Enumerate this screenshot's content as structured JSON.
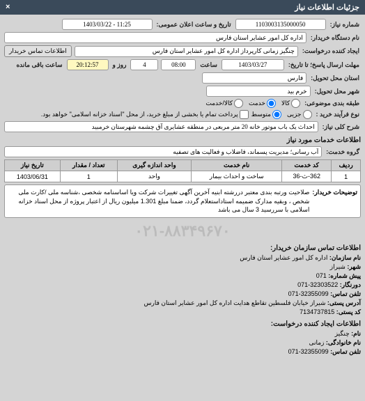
{
  "header": {
    "title": "جزئیات اطلاعات نیاز",
    "close": "×"
  },
  "fields": {
    "req_no_label": "شماره نیاز:",
    "req_no": "1103003135000050",
    "announce_label": "تاریخ و ساعت اعلان عمومی:",
    "announce": "1403/03/22 - 11:25",
    "buyer_label": "نام دستگاه خریدار:",
    "buyer": "اداره کل امور عشایر استان فارس",
    "creator_label": "ایجاد کننده درخواست:",
    "creator": "چنگیز زمانی کارپرداز اداره کل امور عشایر استان فارس",
    "contact_btn": "اطلاعات تماس خریدار",
    "deadline_label": "مهلت ارسال پاسخ؛ تا تاریخ:",
    "deadline_date": "1403/03/27",
    "time1_label": "ساعت",
    "time1": "08:00",
    "days_label": "روز و",
    "days": "4",
    "time2_label": "ساعت باقی مانده",
    "time2": "20:12:57",
    "province_label": "استان محل تحویل:",
    "province": "فارس",
    "city_label": "شهر محل تحویل:",
    "city": "خرم بید",
    "subject_label": "طبقه بندی موضوعی:",
    "subj_kala": "کالا",
    "subj_khedmat": "خدمت",
    "subj_both": "کالا/خدمت",
    "buy_type_label": "نوع فرآیند خرید :",
    "buy_j": "جزیی",
    "buy_m": "متوسط",
    "buy_note": "پرداخت تمام یا بخشی از مبلغ خرید، از محل \"اسناد خزانه اسلامی\" خواهد بود.",
    "title_label": "شرح کلی نیاز:",
    "title": "احداث یک باب موتور خانه 20 متر مربعی در منطقه عشایری آق چشمه شهرستان خرمبید",
    "need_info": "اطلاعات خدمات مورد نیاز",
    "group_label": "گروه خدمت:",
    "group": "آب رسانی؛ مدیریت پسماند، فاضلاب و فعالیت های تصفیه"
  },
  "table": {
    "cols": [
      "ردیف",
      "کد خدمت",
      "نام خدمت",
      "واحد اندازه گیری",
      "تعداد / مقدار",
      "تاریخ نیاز"
    ],
    "rows": [
      [
        "1",
        "362-ث-36",
        "ساخت و احداث بیمار",
        "واحد",
        "1",
        "1403/06/31"
      ]
    ]
  },
  "desc": {
    "label": "توضیحات خریدار:",
    "text": "صلاحیت ورتبه بندی معتبر دررشته ابنیه آخرین آگهی تغییرات شرکت ویا اساسنامه شخصی ،شناسه ملی /کارت ملی شخص ، وبقیه مدارک ضمیمه استاداستعلام گردد، ضمنا مبلغ 1.301 میلیون ریال از اعتبار پروژه از محل اسناد خزانه اسلامی با سررسید 3 سال می باشد"
  },
  "watermark": "۰۲۱-۸۸۳۴۹۶۷۰",
  "contact": {
    "section": "اطلاعات تماس سازمان خریدار:",
    "org_l": "نام سازمان:",
    "org": "اداره کل امور عشایر استان فارس",
    "city_l": "شهر:",
    "city": "شیراز",
    "pre_l": "پیش شماره:",
    "pre": "071",
    "fax_l": "دورنگار:",
    "fax": "32303522-071",
    "tel_l": "تلفن تماس:",
    "tel": "32355099-071",
    "addr_l": "آدرس پستی:",
    "addr": "شیراز خیابان فلسطین تقاطع هدایت اداره کل امور عشایر استان فارس",
    "post_l": "کد پستی:",
    "post": "7134737815",
    "creator_sec": "اطلاعات ایجاد کننده درخواست:",
    "name_l": "نام:",
    "name": "چنگیز",
    "fam_l": "نام خانوادگی:",
    "fam": "زمانی",
    "tel2_l": "تلفن تماس:",
    "tel2": "32355099-071"
  }
}
